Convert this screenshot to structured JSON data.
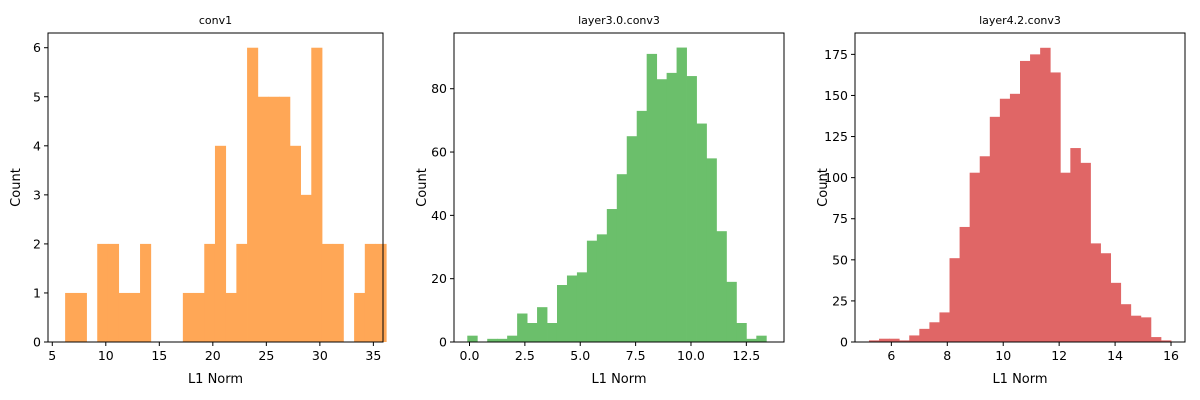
{
  "chart_data": [
    {
      "type": "bar",
      "title": "conv1",
      "xlabel": "L1 Norm",
      "ylabel": "Count",
      "color": "#ffa756",
      "xlim": [
        4.6,
        35.9
      ],
      "ylim": [
        0,
        6.3
      ],
      "xticks": [
        5,
        10,
        15,
        20,
        25,
        30,
        35
      ],
      "yticks": [
        0,
        1,
        2,
        3,
        4,
        5,
        6
      ],
      "bin_start": 6.2,
      "bin_width": 1.0,
      "counts": [
        1,
        1,
        0,
        2,
        2,
        1,
        1,
        2,
        0,
        0,
        0,
        1,
        1,
        2,
        4,
        1,
        2,
        6,
        5,
        5,
        5,
        4,
        3,
        6,
        2,
        2,
        0,
        1,
        2,
        2
      ]
    },
    {
      "type": "bar",
      "title": "layer3.0.conv3",
      "xlabel": "L1 Norm",
      "ylabel": "Count",
      "color": "#6bbf6b",
      "xlim": [
        -0.7,
        14.2
      ],
      "ylim": [
        0,
        97.6
      ],
      "xticks": [
        0.0,
        2.5,
        5.0,
        7.5,
        10.0,
        12.5
      ],
      "yticks": [
        0,
        20,
        40,
        60,
        80
      ],
      "bin_start": -0.1,
      "bin_width": 0.45,
      "counts": [
        2,
        0,
        1,
        1,
        2,
        9,
        6,
        11,
        6,
        18,
        21,
        22,
        32,
        34,
        42,
        53,
        65,
        73,
        91,
        83,
        85,
        93,
        84,
        69,
        58,
        35,
        19,
        6,
        1,
        2
      ]
    },
    {
      "type": "bar",
      "title": "layer4.2.conv3",
      "xlabel": "L1 Norm",
      "ylabel": "Count",
      "color": "#e06666",
      "xlim": [
        4.7,
        16.5
      ],
      "ylim": [
        0,
        188
      ],
      "xticks": [
        6,
        8,
        10,
        12,
        14,
        16
      ],
      "yticks": [
        0,
        25,
        50,
        75,
        100,
        125,
        150,
        175
      ],
      "bin_start": 5.2,
      "bin_width": 0.36,
      "counts": [
        1,
        2,
        2,
        1,
        4,
        8,
        12,
        18,
        51,
        70,
        103,
        113,
        137,
        148,
        151,
        171,
        175,
        179,
        164,
        103,
        118,
        109,
        60,
        54,
        36,
        23,
        16,
        15,
        3,
        1
      ]
    }
  ]
}
